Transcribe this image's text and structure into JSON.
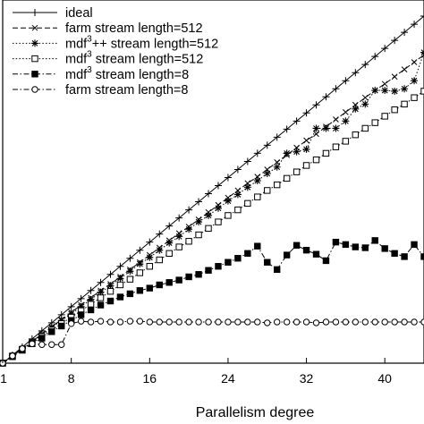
{
  "chart_data": {
    "type": "line",
    "title": "",
    "xlabel": "Parallelism degree",
    "ylabel": "",
    "xlim": [
      1,
      44
    ],
    "ylim": [
      1,
      46
    ],
    "x_ticks": [
      1,
      8,
      16,
      24,
      32,
      40
    ],
    "x_tick_labels": [
      "1",
      "8",
      "16",
      "24",
      "32",
      "40"
    ],
    "grid": false,
    "legend_position": "top-left",
    "series": [
      {
        "name": "ideal",
        "marker": "plus",
        "dash": "solid",
        "x": [
          1,
          2,
          3,
          4,
          5,
          6,
          7,
          8,
          9,
          10,
          11,
          12,
          13,
          14,
          15,
          16,
          17,
          18,
          19,
          20,
          21,
          22,
          23,
          24,
          25,
          26,
          27,
          28,
          29,
          30,
          31,
          32,
          33,
          34,
          35,
          36,
          37,
          38,
          39,
          40,
          41,
          42,
          43,
          44
        ],
        "y": [
          1,
          2,
          3,
          4,
          5,
          6,
          7,
          8,
          9,
          10,
          11,
          12,
          13,
          14,
          15,
          16,
          17,
          18,
          19,
          20,
          21,
          22,
          23,
          24,
          25,
          26,
          27,
          28,
          29,
          30,
          31,
          32,
          33,
          34,
          35,
          36,
          37,
          38,
          39,
          40,
          41,
          42,
          43,
          44
        ]
      },
      {
        "name": "farm stream length=512",
        "marker": "x",
        "dash": "dashed",
        "x": [
          1,
          2,
          3,
          4,
          5,
          6,
          7,
          8,
          9,
          10,
          11,
          12,
          13,
          14,
          15,
          16,
          17,
          18,
          19,
          20,
          21,
          22,
          23,
          24,
          25,
          26,
          27,
          28,
          29,
          30,
          31,
          32,
          33,
          34,
          35,
          36,
          37,
          38,
          39,
          40,
          41,
          42,
          43,
          44
        ],
        "y": [
          1,
          1.9,
          2.8,
          3.7,
          4.6,
          5.5,
          6.4,
          7.3,
          8.2,
          9.1,
          10,
          10.8,
          11.7,
          12.6,
          13.5,
          14.4,
          15.3,
          16.2,
          17.1,
          17.9,
          18.8,
          19.7,
          20.6,
          21.5,
          22.4,
          23.3,
          24.1,
          25,
          25.9,
          26.8,
          27.7,
          28.6,
          29.4,
          30.3,
          31.2,
          32.1,
          33,
          33.9,
          34.8,
          35.6,
          36.5,
          37.4,
          38.3,
          39.2
        ]
      },
      {
        "name": "mdf3++ stream length=512",
        "marker": "star",
        "dash": "dotted",
        "x": [
          1,
          2,
          3,
          4,
          5,
          6,
          7,
          8,
          9,
          10,
          11,
          12,
          13,
          14,
          15,
          16,
          17,
          18,
          19,
          20,
          21,
          22,
          23,
          24,
          25,
          26,
          27,
          28,
          29,
          30,
          31,
          32,
          33,
          34,
          35,
          36,
          37,
          38,
          39,
          40,
          41,
          42,
          43,
          44
        ],
        "y": [
          1,
          1.9,
          2.8,
          3.6,
          4.5,
          5.4,
          6.3,
          7.1,
          8,
          8.9,
          9.8,
          10.6,
          11.5,
          12.4,
          13.3,
          14.1,
          15,
          15.9,
          16.7,
          17.6,
          18.5,
          19.3,
          20.2,
          21.1,
          21.9,
          22.8,
          23.6,
          24.5,
          25.3,
          27,
          27.2,
          27.5,
          30.1,
          30.1,
          30.1,
          31,
          32.5,
          33.1,
          34.8,
          34.8,
          34.7,
          35,
          36,
          39.5
        ]
      },
      {
        "name": "mdf3 stream length=512",
        "marker": "square",
        "dash": "dotted",
        "x": [
          1,
          2,
          3,
          4,
          5,
          6,
          7,
          8,
          9,
          10,
          11,
          12,
          13,
          14,
          15,
          16,
          17,
          18,
          19,
          20,
          21,
          22,
          23,
          24,
          25,
          26,
          27,
          28,
          29,
          30,
          31,
          32,
          33,
          34,
          35,
          36,
          37,
          38,
          39,
          40,
          41,
          42,
          43,
          44
        ],
        "y": [
          1,
          1.9,
          2.7,
          3.5,
          4.3,
          5.1,
          5.9,
          6.7,
          7.5,
          8.3,
          9.1,
          9.9,
          10.7,
          11.4,
          12.2,
          13,
          13.8,
          14.6,
          15.4,
          16.1,
          16.9,
          17.7,
          18.5,
          19.3,
          20,
          20.8,
          21.6,
          22.4,
          23.1,
          23.9,
          24.7,
          25.5,
          26.2,
          27,
          27.8,
          28.5,
          29.3,
          30.1,
          30.8,
          31.6,
          32.4,
          33.1,
          33.9,
          34.7
        ]
      },
      {
        "name": "mdf3 stream length=8",
        "marker": "filled-square",
        "dash": "dash-dot",
        "x": [
          1,
          2,
          3,
          4,
          5,
          6,
          7,
          8,
          9,
          10,
          11,
          12,
          13,
          14,
          15,
          16,
          17,
          18,
          19,
          20,
          21,
          22,
          23,
          24,
          25,
          26,
          27,
          28,
          29,
          30,
          31,
          32,
          33,
          34,
          35,
          36,
          37,
          38,
          39,
          40,
          41,
          42,
          43,
          44
        ],
        "y": [
          1,
          1.8,
          2.6,
          3.4,
          4.1,
          4.9,
          5.6,
          6.3,
          7,
          7.6,
          8.2,
          8.7,
          9.2,
          9.6,
          10,
          10.3,
          10.7,
          11,
          11.3,
          11.7,
          12,
          12.5,
          13,
          13.5,
          14,
          14.6,
          15.5,
          13.5,
          12.6,
          14.4,
          15.6,
          15,
          14.5,
          13.7,
          16,
          15.7,
          15.4,
          15.3,
          16.2,
          15.2,
          14.6,
          14.2,
          15.7,
          14.2
        ]
      },
      {
        "name": "farm stream length=8",
        "marker": "circle",
        "dash": "dash-dot",
        "x": [
          1,
          2,
          3,
          4,
          5,
          6,
          7,
          8,
          9,
          10,
          11,
          12,
          13,
          14,
          15,
          16,
          17,
          18,
          19,
          20,
          21,
          22,
          23,
          24,
          25,
          26,
          27,
          28,
          29,
          30,
          31,
          32,
          33,
          34,
          35,
          36,
          37,
          38,
          39,
          40,
          41,
          42,
          43,
          44
        ],
        "y": [
          1,
          1.9,
          2.8,
          3.4,
          3.3,
          3.3,
          3.3,
          5.9,
          6.2,
          6.1,
          6.2,
          6.1,
          6.1,
          6.2,
          6.2,
          6.1,
          6.1,
          6.1,
          6.1,
          6.1,
          6.1,
          6.1,
          6.1,
          6.1,
          6.1,
          6.1,
          6.1,
          6,
          6.1,
          6.1,
          6.1,
          6.1,
          6,
          6.1,
          6.1,
          6.1,
          6.1,
          6.1,
          6.1,
          6.1,
          6.1,
          6.1,
          6.1,
          6.1
        ]
      }
    ],
    "legend": [
      {
        "pre": "ideal",
        "sup": "",
        "post": ""
      },
      {
        "pre": "farm stream length=512",
        "sup": "",
        "post": ""
      },
      {
        "pre": "mdf",
        "sup": "3",
        "post": "++ stream length=512"
      },
      {
        "pre": "mdf",
        "sup": "3",
        "post": " stream length=512"
      },
      {
        "pre": "mdf",
        "sup": "3",
        "post": " stream length=8"
      },
      {
        "pre": "farm stream length=8",
        "sup": "",
        "post": ""
      }
    ]
  }
}
